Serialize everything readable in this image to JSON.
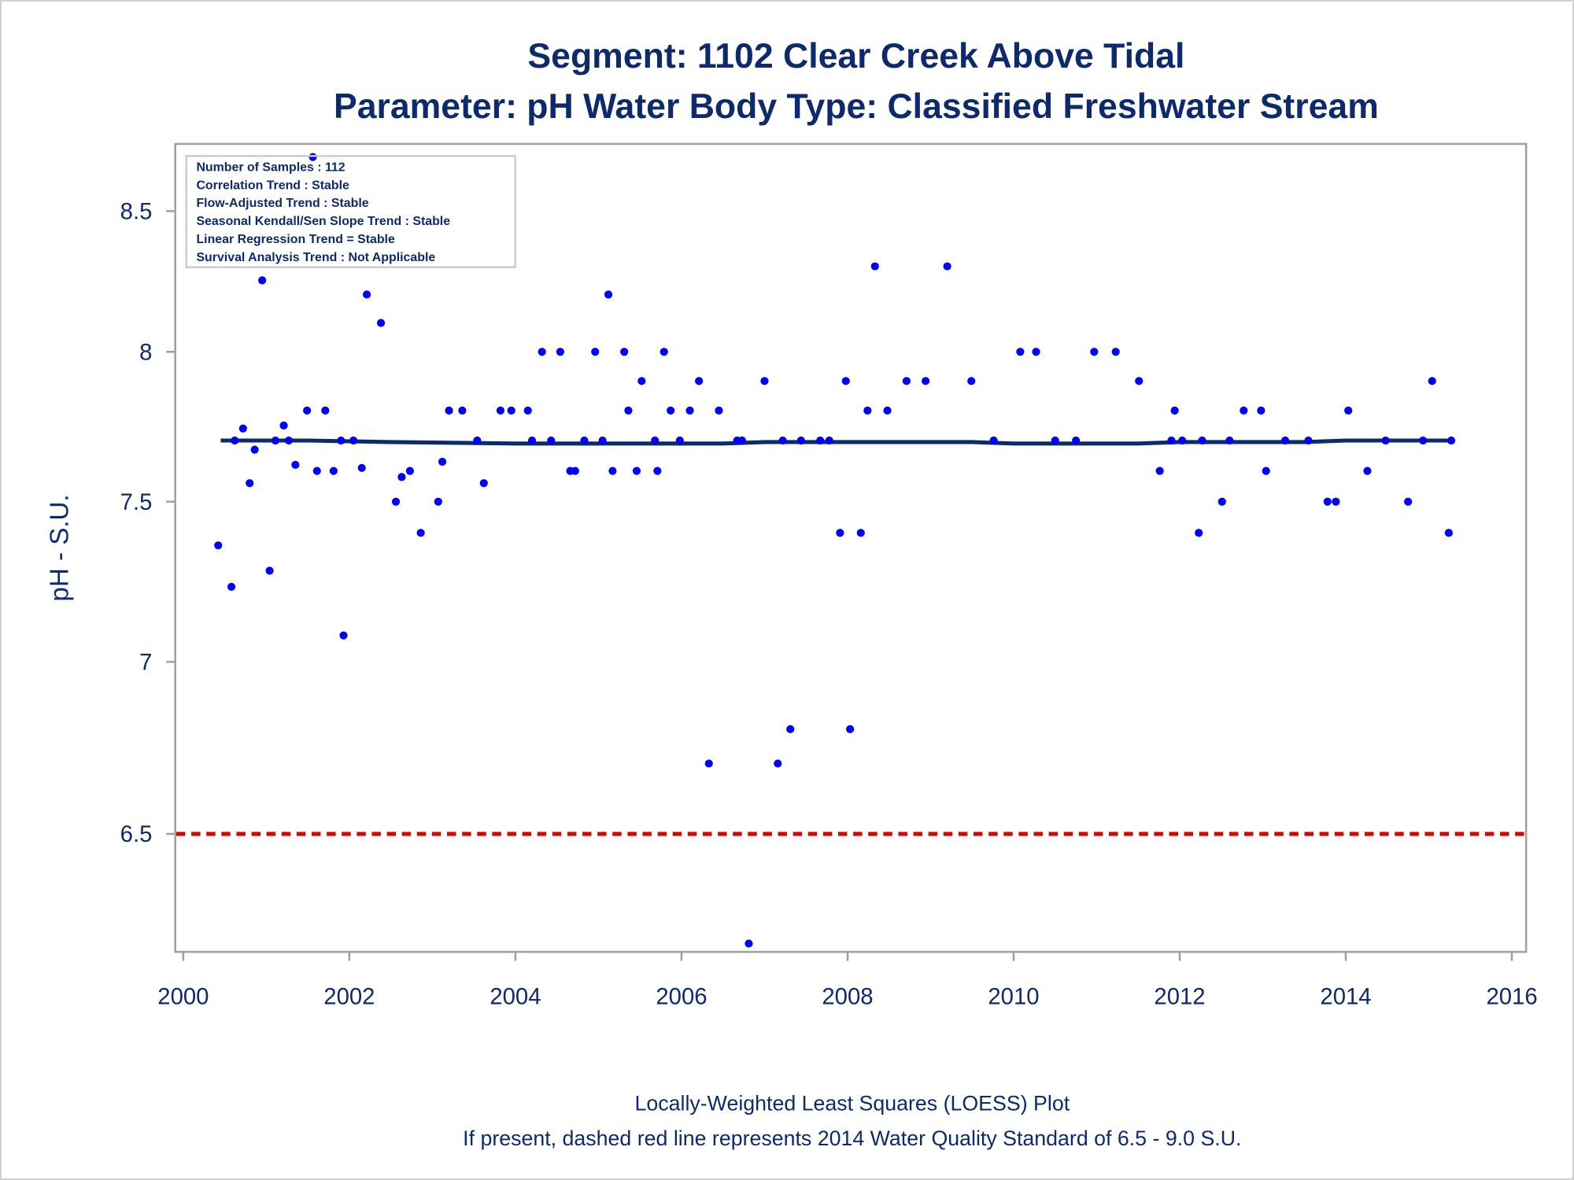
{
  "chart_data": {
    "type": "scatter",
    "title": "Segment: 1102  Clear Creek Above Tidal",
    "subtitle": "Parameter: pH   Water Body Type: Classified Freshwater Stream",
    "xlabel": "",
    "ylabel": "pH - S.U.",
    "y_scale": "log",
    "xlim": [
      2000,
      2016
    ],
    "ylim": [
      6.15,
      8.72
    ],
    "x_ticks": [
      "2000",
      "2002",
      "2004",
      "2006",
      "2008",
      "2010",
      "2012",
      "2014",
      "2016"
    ],
    "y_ticks": [
      "8.5",
      "8",
      "7.5",
      "7",
      "6.5"
    ],
    "grid": false,
    "footnotes": [
      "Locally-Weighted Least Squares (LOESS) Plot",
      "If present, dashed red line represents 2014 Water Quality Standard of 6.5 - 9.0 S.U."
    ],
    "inset_position": "top-left",
    "inset_lines": [
      "Number of Samples : 112",
      "Correlation Trend : Stable",
      "Flow-Adjusted Trend : Stable",
      "Seasonal Kendall/Sen Slope Trend : Stable",
      "Linear Regression Trend = Stable",
      "Survival Analysis Trend : Not Applicable"
    ],
    "standard_line": {
      "value": 6.5,
      "label": "2014 Water Quality Standard",
      "color": "#dd0000"
    },
    "colors": {
      "points": "#0000ff",
      "loess": "#0d2a6e",
      "text": "#0d2a6e",
      "frame": "#a0a0a0"
    },
    "loess": [
      [
        2000.45,
        7.7
      ],
      [
        2001.5,
        7.7
      ],
      [
        2002.5,
        7.695
      ],
      [
        2004,
        7.69
      ],
      [
        2006.5,
        7.69
      ],
      [
        2007,
        7.695
      ],
      [
        2008.5,
        7.695
      ],
      [
        2009.5,
        7.695
      ],
      [
        2010,
        7.69
      ],
      [
        2011.5,
        7.69
      ],
      [
        2012,
        7.695
      ],
      [
        2013.5,
        7.695
      ],
      [
        2014,
        7.7
      ],
      [
        2015.3,
        7.7
      ]
    ],
    "points": [
      [
        2000.42,
        7.36
      ],
      [
        2000.58,
        7.23
      ],
      [
        2000.62,
        7.7
      ],
      [
        2000.72,
        7.74
      ],
      [
        2000.8,
        7.56
      ],
      [
        2000.86,
        7.67
      ],
      [
        2000.95,
        8.25
      ],
      [
        2001.04,
        7.28
      ],
      [
        2001.11,
        7.7
      ],
      [
        2001.21,
        7.75
      ],
      [
        2001.27,
        7.7
      ],
      [
        2001.35,
        7.62
      ],
      [
        2001.49,
        7.8
      ],
      [
        2001.56,
        8.7
      ],
      [
        2001.61,
        7.6
      ],
      [
        2001.71,
        7.8
      ],
      [
        2001.81,
        7.6
      ],
      [
        2001.9,
        7.7
      ],
      [
        2001.93,
        7.08
      ],
      [
        2002.05,
        7.7
      ],
      [
        2002.15,
        7.61
      ],
      [
        2002.21,
        8.2
      ],
      [
        2002.38,
        8.1
      ],
      [
        2002.56,
        7.5
      ],
      [
        2002.63,
        7.58
      ],
      [
        2002.73,
        7.6
      ],
      [
        2002.86,
        7.4
      ],
      [
        2003.07,
        7.5
      ],
      [
        2003.12,
        7.63
      ],
      [
        2003.2,
        7.8
      ],
      [
        2003.36,
        7.8
      ],
      [
        2003.54,
        7.7
      ],
      [
        2003.62,
        7.56
      ],
      [
        2003.82,
        7.8
      ],
      [
        2003.95,
        7.8
      ],
      [
        2004.15,
        7.8
      ],
      [
        2004.2,
        7.7
      ],
      [
        2004.32,
        8.0
      ],
      [
        2004.43,
        7.7
      ],
      [
        2004.54,
        8.0
      ],
      [
        2004.66,
        7.6
      ],
      [
        2004.72,
        7.6
      ],
      [
        2004.83,
        7.7
      ],
      [
        2004.96,
        8.0
      ],
      [
        2005.05,
        7.7
      ],
      [
        2005.12,
        8.2
      ],
      [
        2005.17,
        7.6
      ],
      [
        2005.31,
        8.0
      ],
      [
        2005.36,
        7.8
      ],
      [
        2005.46,
        7.6
      ],
      [
        2005.52,
        7.9
      ],
      [
        2005.68,
        7.7
      ],
      [
        2005.71,
        7.6
      ],
      [
        2005.79,
        8.0
      ],
      [
        2005.87,
        7.8
      ],
      [
        2005.98,
        7.7
      ],
      [
        2006.1,
        7.8
      ],
      [
        2006.21,
        7.9
      ],
      [
        2006.33,
        6.7
      ],
      [
        2006.45,
        7.8
      ],
      [
        2006.67,
        7.7
      ],
      [
        2006.73,
        7.7
      ],
      [
        2006.81,
        6.2
      ],
      [
        2007.0,
        7.9
      ],
      [
        2007.16,
        6.7
      ],
      [
        2007.22,
        7.7
      ],
      [
        2007.31,
        6.8
      ],
      [
        2007.44,
        7.7
      ],
      [
        2007.67,
        7.7
      ],
      [
        2007.78,
        7.7
      ],
      [
        2007.91,
        7.4
      ],
      [
        2007.98,
        7.9
      ],
      [
        2008.03,
        6.8
      ],
      [
        2008.16,
        7.4
      ],
      [
        2008.24,
        7.8
      ],
      [
        2008.33,
        8.3
      ],
      [
        2008.48,
        7.8
      ],
      [
        2008.71,
        7.9
      ],
      [
        2008.94,
        7.9
      ],
      [
        2009.2,
        8.3
      ],
      [
        2009.49,
        7.9
      ],
      [
        2009.76,
        7.7
      ],
      [
        2010.08,
        8.0
      ],
      [
        2010.27,
        8.0
      ],
      [
        2010.5,
        7.7
      ],
      [
        2010.75,
        7.7
      ],
      [
        2010.97,
        8.0
      ],
      [
        2011.23,
        8.0
      ],
      [
        2011.51,
        7.9
      ],
      [
        2011.76,
        7.6
      ],
      [
        2011.9,
        7.7
      ],
      [
        2011.94,
        7.8
      ],
      [
        2012.03,
        7.7
      ],
      [
        2012.23,
        7.4
      ],
      [
        2012.27,
        7.7
      ],
      [
        2012.51,
        7.5
      ],
      [
        2012.6,
        7.7
      ],
      [
        2012.77,
        7.8
      ],
      [
        2012.98,
        7.8
      ],
      [
        2013.04,
        7.6
      ],
      [
        2013.27,
        7.7
      ],
      [
        2013.55,
        7.7
      ],
      [
        2013.78,
        7.5
      ],
      [
        2013.88,
        7.5
      ],
      [
        2014.03,
        7.8
      ],
      [
        2014.26,
        7.6
      ],
      [
        2014.48,
        7.7
      ],
      [
        2014.75,
        7.5
      ],
      [
        2014.93,
        7.7
      ],
      [
        2015.04,
        7.9
      ],
      [
        2015.24,
        7.4
      ],
      [
        2015.27,
        7.7
      ]
    ]
  }
}
